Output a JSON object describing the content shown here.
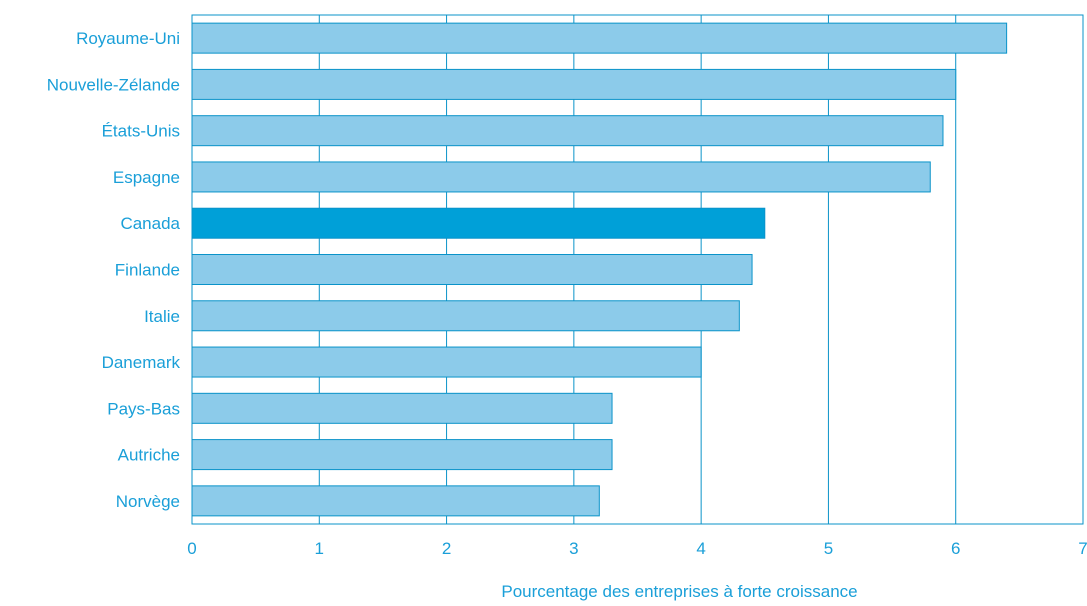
{
  "colors": {
    "bar": "#8ccbea",
    "bar_highlight": "#00a0d8",
    "bar_stroke": "#0a93c9",
    "frame": "#0a93c9",
    "grid": "#0a93c9",
    "text": "#1a9fd8"
  },
  "chart_data": {
    "type": "bar",
    "orientation": "horizontal",
    "categories": [
      "Royaume-Uni",
      "Nouvelle-Zélande",
      "États-Unis",
      "Espagne",
      "Canada",
      "Finlande",
      "Italie",
      "Danemark",
      "Pays-Bas",
      "Autriche",
      "Norvège"
    ],
    "values": [
      6.4,
      6.0,
      5.9,
      5.8,
      4.5,
      4.4,
      4.3,
      4.0,
      3.3,
      3.3,
      3.2
    ],
    "highlight": "Canada",
    "xlabel": "Pourcentage des entreprises à forte croissance",
    "ylabel": "",
    "xlim": [
      0,
      7
    ],
    "xticks": [
      "0",
      "1",
      "2",
      "3",
      "4",
      "5",
      "6",
      "7"
    ],
    "grid": "vertical"
  }
}
